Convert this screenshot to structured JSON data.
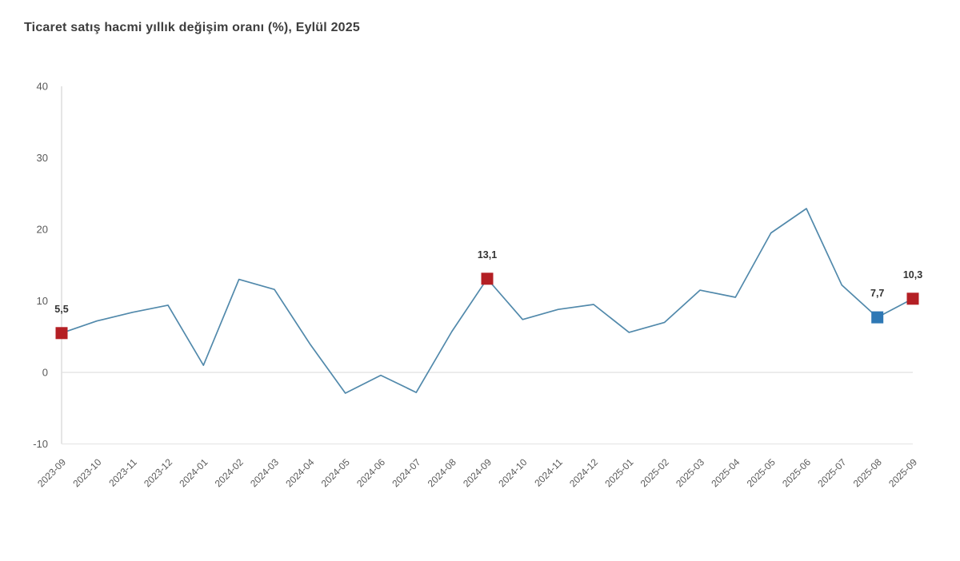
{
  "page": {
    "title": "Ticaret satış hacmi yıllık değişim oranı (%), Eylül 2025"
  },
  "chart_data": {
    "type": "line",
    "title": "Ticaret satış hacmi yıllık değişim oranı (%), Eylül 2025",
    "x": [
      "2023-09",
      "2023-10",
      "2023-11",
      "2023-12",
      "2024-01",
      "2024-02",
      "2024-03",
      "2024-04",
      "2024-05",
      "2024-06",
      "2024-07",
      "2024-08",
      "2024-09",
      "2024-10",
      "2024-11",
      "2024-12",
      "2025-01",
      "2025-02",
      "2025-03",
      "2025-04",
      "2025-05",
      "2025-06",
      "2025-07",
      "2025-08",
      "2025-09"
    ],
    "series": [
      {
        "name": "Ticaret satış hacmi yıllık değişim oranı (%)",
        "values": [
          5.5,
          7.2,
          8.4,
          9.4,
          1.0,
          13.0,
          11.6,
          4.0,
          -2.9,
          -0.4,
          -2.8,
          5.7,
          13.1,
          7.4,
          8.8,
          9.5,
          5.6,
          7.0,
          11.5,
          10.5,
          19.5,
          22.9,
          12.2,
          7.7,
          10.3
        ]
      }
    ],
    "ylim": [
      -10,
      40
    ],
    "yticks": [
      40,
      30,
      20,
      10,
      0,
      -10
    ],
    "xlabel": "",
    "ylabel": "",
    "legend": "none",
    "grid": "zero baseline only",
    "line_color": "#5189ab",
    "axis_color": "#d7d7d7",
    "zero_line_color": "#e0e0e0",
    "bottom_line_color": "#e7e7e7",
    "tick_label_color": "#595959",
    "data_label_color": "#333333",
    "highlighted_points": [
      {
        "x": "2023-09",
        "value": 5.5,
        "label": "5,5",
        "marker_color": "#b41f24"
      },
      {
        "x": "2024-09",
        "value": 13.1,
        "label": "13,1",
        "marker_color": "#b41f24"
      },
      {
        "x": "2025-08",
        "value": 7.7,
        "label": "7,7",
        "marker_color": "#2e78b5"
      },
      {
        "x": "2025-09",
        "value": 10.3,
        "label": "10,3",
        "marker_color": "#b41f24"
      }
    ]
  }
}
